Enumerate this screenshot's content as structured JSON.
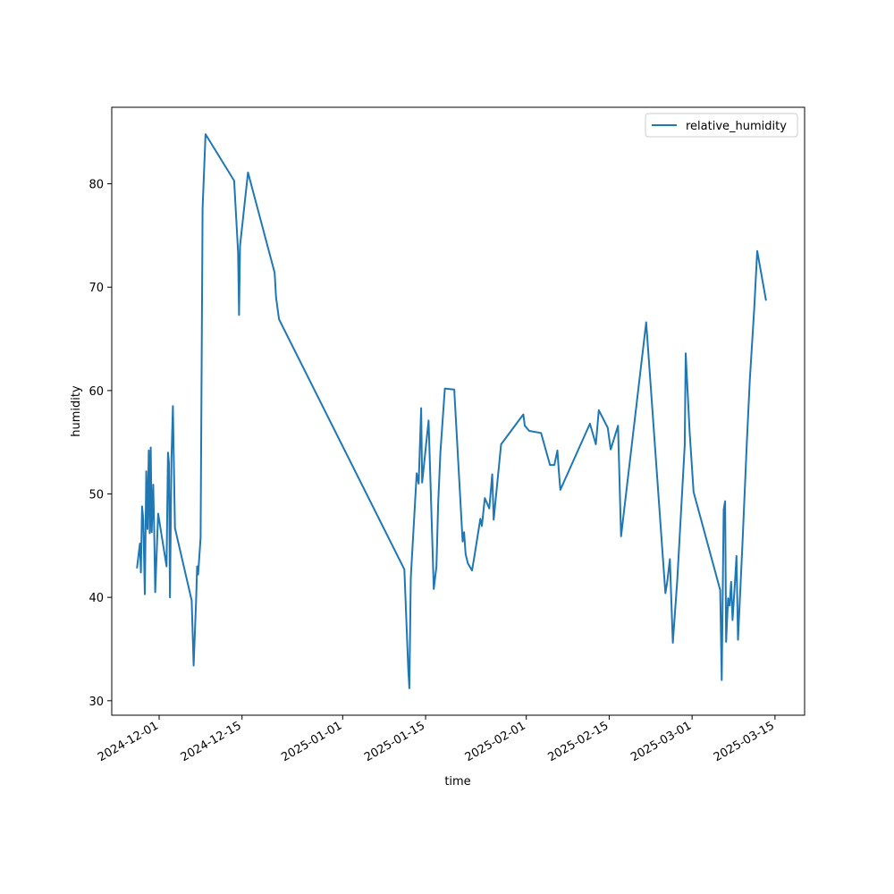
{
  "chart_data": {
    "type": "line",
    "title": "",
    "xlabel": "time",
    "ylabel": "humidity",
    "x_tick_labels": [
      "2024-12-01",
      "2024-12-15",
      "2025-01-01",
      "2025-01-15",
      "2025-02-01",
      "2025-02-15",
      "2025-03-01",
      "2025-03-15"
    ],
    "y_tick_values": [
      30,
      40,
      50,
      60,
      70,
      80
    ],
    "xlim": [
      "2024-11-23T00:00",
      "2025-03-20T00:00"
    ],
    "ylim": [
      28.6,
      87.4
    ],
    "grid": false,
    "legend": {
      "position": "top-right",
      "entries": [
        "relative_humidity"
      ]
    },
    "series": [
      {
        "name": "relative_humidity",
        "color": "#1f77b4",
        "points": [
          [
            "2024-11-27T06:00",
            42.8
          ],
          [
            "2024-11-27T18:00",
            45.2
          ],
          [
            "2024-11-27T22:00",
            42.4
          ],
          [
            "2024-11-28T03:00",
            48.8
          ],
          [
            "2024-11-28T08:00",
            47.5
          ],
          [
            "2024-11-28T14:00",
            40.3
          ],
          [
            "2024-11-28T20:00",
            52.2
          ],
          [
            "2024-11-29T01:00",
            46.6
          ],
          [
            "2024-11-29T06:00",
            54.2
          ],
          [
            "2024-11-29T10:00",
            46.2
          ],
          [
            "2024-11-29T14:00",
            54.5
          ],
          [
            "2024-11-29T18:00",
            46.3
          ],
          [
            "2024-11-30T00:00",
            50.9
          ],
          [
            "2024-11-30T04:00",
            46.4
          ],
          [
            "2024-11-30T08:00",
            40.5
          ],
          [
            "2024-11-30T20:00",
            48.1
          ],
          [
            "2024-12-02T06:00",
            43.0
          ],
          [
            "2024-12-02T12:00",
            54.0
          ],
          [
            "2024-12-02T16:00",
            53.0
          ],
          [
            "2024-12-02T20:00",
            40.0
          ],
          [
            "2024-12-03T02:00",
            53.4
          ],
          [
            "2024-12-03T08:00",
            58.5
          ],
          [
            "2024-12-03T16:00",
            46.7
          ],
          [
            "2024-12-06T12:00",
            39.7
          ],
          [
            "2024-12-06T20:00",
            33.4
          ],
          [
            "2024-12-07T06:00",
            39.8
          ],
          [
            "2024-12-07T10:00",
            43.0
          ],
          [
            "2024-12-07T14:00",
            42.2
          ],
          [
            "2024-12-08T00:00",
            45.8
          ],
          [
            "2024-12-08T08:00",
            77.6
          ],
          [
            "2024-12-08T20:00",
            84.8
          ],
          [
            "2024-12-13T16:00",
            80.3
          ],
          [
            "2024-12-14T08:00",
            73.4
          ],
          [
            "2024-12-14T12:00",
            67.3
          ],
          [
            "2024-12-14T16:00",
            74.0
          ],
          [
            "2024-12-16T00:00",
            81.1
          ],
          [
            "2024-12-20T12:00",
            71.4
          ],
          [
            "2024-12-20T18:00",
            69.0
          ],
          [
            "2024-12-21T06:00",
            66.9
          ],
          [
            "2025-01-11T10:00",
            42.7
          ],
          [
            "2025-01-12T02:00",
            33.0
          ],
          [
            "2025-01-12T06:00",
            31.2
          ],
          [
            "2025-01-12T12:00",
            41.9
          ],
          [
            "2025-01-13T12:00",
            52.0
          ],
          [
            "2025-01-13T20:00",
            51.0
          ],
          [
            "2025-01-14T06:00",
            58.3
          ],
          [
            "2025-01-14T10:00",
            51.1
          ],
          [
            "2025-01-15T12:00",
            57.1
          ],
          [
            "2025-01-16T09:00",
            40.8
          ],
          [
            "2025-01-16T20:00",
            43.0
          ],
          [
            "2025-01-17T03:00",
            49.0
          ],
          [
            "2025-01-17T12:00",
            54.0
          ],
          [
            "2025-01-18T06:00",
            60.2
          ],
          [
            "2025-01-19T20:00",
            60.1
          ],
          [
            "2025-01-21T06:00",
            45.4
          ],
          [
            "2025-01-21T12:00",
            46.3
          ],
          [
            "2025-01-21T18:00",
            44.2
          ],
          [
            "2025-01-22T03:00",
            43.3
          ],
          [
            "2025-01-22T20:00",
            42.6
          ],
          [
            "2025-01-23T06:00",
            44.0
          ],
          [
            "2025-01-24T06:00",
            47.6
          ],
          [
            "2025-01-24T12:00",
            46.9
          ],
          [
            "2025-01-25T00:00",
            49.6
          ],
          [
            "2025-01-25T18:00",
            48.6
          ],
          [
            "2025-01-26T06:00",
            51.9
          ],
          [
            "2025-01-26T12:00",
            47.5
          ],
          [
            "2025-01-27T18:00",
            54.8
          ],
          [
            "2025-01-31T12:00",
            57.7
          ],
          [
            "2025-01-31T18:00",
            56.6
          ],
          [
            "2025-02-01T12:00",
            56.1
          ],
          [
            "2025-02-03T12:00",
            55.9
          ],
          [
            "2025-02-05T00:00",
            52.8
          ],
          [
            "2025-02-05T18:00",
            52.8
          ],
          [
            "2025-02-06T06:00",
            54.2
          ],
          [
            "2025-02-06T12:00",
            52.2
          ],
          [
            "2025-02-06T18:00",
            50.4
          ],
          [
            "2025-02-11T18:00",
            56.8
          ],
          [
            "2025-02-12T18:00",
            54.8
          ],
          [
            "2025-02-13T06:00",
            58.1
          ],
          [
            "2025-02-14T18:00",
            56.4
          ],
          [
            "2025-02-15T06:00",
            54.3
          ],
          [
            "2025-02-16T12:00",
            56.6
          ],
          [
            "2025-02-17T00:00",
            45.9
          ],
          [
            "2025-02-21T06:00",
            66.6
          ],
          [
            "2025-02-24T12:00",
            40.4
          ],
          [
            "2025-02-24T20:00",
            41.6
          ],
          [
            "2025-02-25T06:00",
            43.7
          ],
          [
            "2025-02-25T18:00",
            35.6
          ],
          [
            "2025-02-26T12:00",
            41.7
          ],
          [
            "2025-02-27T18:00",
            54.7
          ],
          [
            "2025-02-27T22:00",
            63.6
          ],
          [
            "2025-02-28T14:00",
            56.0
          ],
          [
            "2025-03-01T06:00",
            50.2
          ],
          [
            "2025-03-05T18:00",
            40.7
          ],
          [
            "2025-03-06T00:00",
            32.0
          ],
          [
            "2025-03-06T08:00",
            48.5
          ],
          [
            "2025-03-06T14:00",
            49.3
          ],
          [
            "2025-03-06T18:00",
            35.7
          ],
          [
            "2025-03-07T02:00",
            39.9
          ],
          [
            "2025-03-07T08:00",
            39.2
          ],
          [
            "2025-03-07T14:00",
            41.5
          ],
          [
            "2025-03-07T20:00",
            37.8
          ],
          [
            "2025-03-08T06:00",
            41.6
          ],
          [
            "2025-03-08T12:00",
            44.0
          ],
          [
            "2025-03-08T18:00",
            35.9
          ],
          [
            "2025-03-09T12:00",
            45.0
          ],
          [
            "2025-03-10T06:00",
            55.0
          ],
          [
            "2025-03-10T18:00",
            61.0
          ],
          [
            "2025-03-11T12:00",
            68.0
          ],
          [
            "2025-03-12T00:00",
            73.5
          ],
          [
            "2025-03-13T12:00",
            68.7
          ]
        ]
      }
    ]
  }
}
